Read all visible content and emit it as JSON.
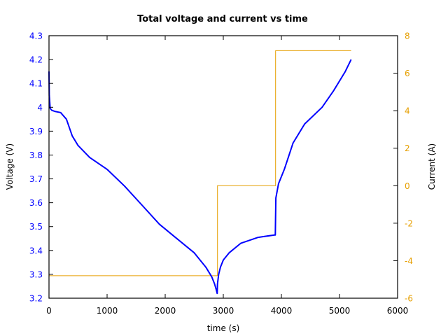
{
  "chart_data": {
    "type": "line",
    "title": "Total voltage and current vs time",
    "xlabel": "time (s)",
    "ylabel": "Voltage (V)",
    "y2label": "Current (A)",
    "xlim": [
      0,
      6000
    ],
    "ylim": [
      3.2,
      4.3
    ],
    "y2lim": [
      -6,
      8
    ],
    "xticks": [
      "0",
      "1000",
      "2000",
      "3000",
      "4000",
      "5000",
      "6000"
    ],
    "yticks": [
      "3.2",
      "3.3",
      "3.4",
      "3.5",
      "3.6",
      "3.7",
      "3.8",
      "3.9",
      "4",
      "4.1",
      "4.2",
      "4.3"
    ],
    "y2ticks": [
      "-6",
      "-4",
      "-2",
      "0",
      "2",
      "4",
      "6",
      "8"
    ],
    "grid": false,
    "legend": null,
    "colors": {
      "voltage": "#0000ff",
      "current": "#e69f00",
      "frame": "#000000"
    },
    "series": [
      {
        "name": "Voltage",
        "axis": "left",
        "x": [
          0,
          5,
          20,
          50,
          100,
          200,
          300,
          400,
          500,
          700,
          1000,
          1300,
          1600,
          1900,
          2200,
          2500,
          2700,
          2800,
          2850,
          2880,
          2895,
          2900,
          2920,
          2950,
          3000,
          3100,
          3300,
          3600,
          3880,
          3895,
          3905,
          3950,
          4050,
          4200,
          4400,
          4700,
          4900,
          5100,
          5200
        ],
        "y": [
          4.15,
          4.05,
          3.995,
          3.987,
          3.983,
          3.978,
          3.95,
          3.88,
          3.84,
          3.79,
          3.74,
          3.67,
          3.59,
          3.51,
          3.45,
          3.39,
          3.33,
          3.29,
          3.26,
          3.235,
          3.22,
          3.26,
          3.3,
          3.33,
          3.36,
          3.39,
          3.43,
          3.455,
          3.465,
          3.465,
          3.62,
          3.68,
          3.74,
          3.85,
          3.93,
          4.0,
          4.07,
          4.15,
          4.2
        ]
      },
      {
        "name": "Current",
        "axis": "right",
        "x": [
          0,
          2900,
          2900,
          3900,
          3900,
          5200
        ],
        "y": [
          -4.8,
          -4.8,
          0,
          0,
          7.2,
          7.2
        ]
      }
    ]
  }
}
